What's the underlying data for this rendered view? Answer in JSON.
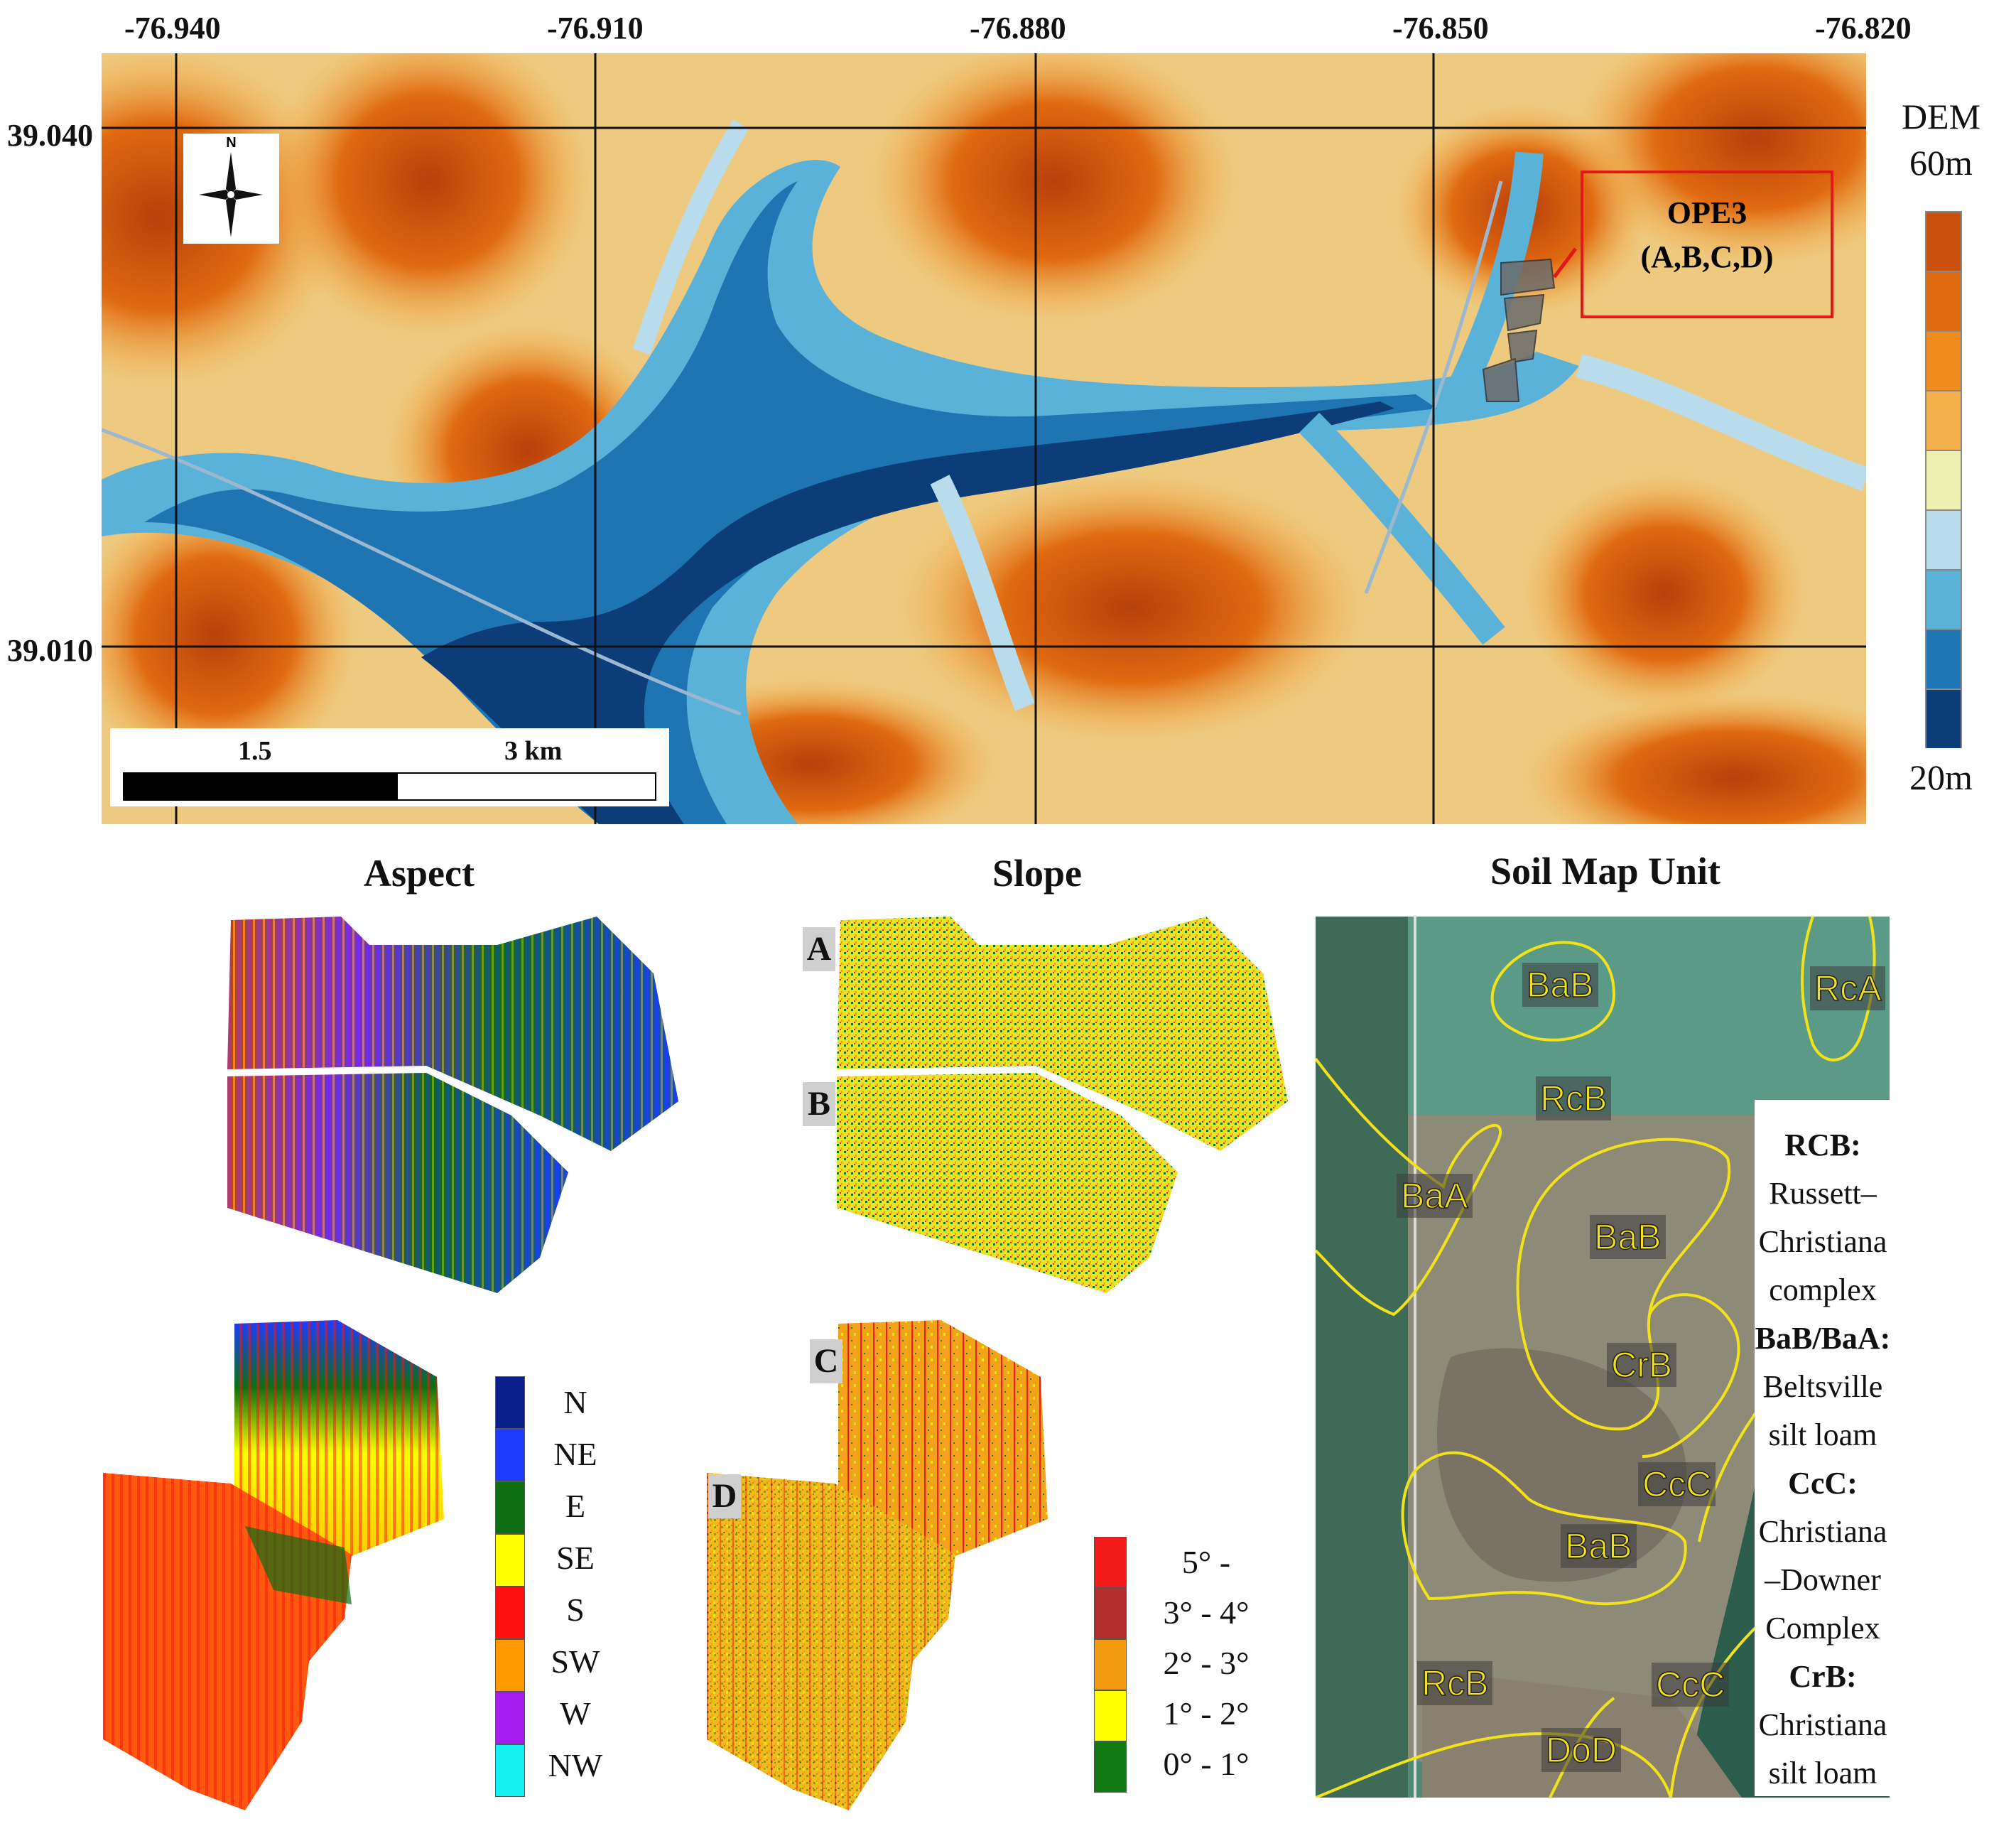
{
  "dem_map": {
    "lon_ticks": [
      "-76.940",
      "-76.910",
      "-76.880",
      "-76.850",
      "-76.820"
    ],
    "lat_ticks": [
      "39.040",
      "39.010"
    ],
    "north_label": "N",
    "scale_bar": {
      "mid": "1.5",
      "end": "3 km"
    },
    "study_site": {
      "title": "OPE3",
      "fields": "(A,B,C,D)"
    },
    "legend": {
      "title": "DEM",
      "max": "60m",
      "min": "20m",
      "colors": [
        "#c9500f",
        "#e06a10",
        "#f08c1c",
        "#f4b04a",
        "#eef0b0",
        "#b9dcec",
        "#5ab2d8",
        "#1f74b2",
        "#0d3d78"
      ]
    },
    "icons": [
      "north-arrow-icon"
    ]
  },
  "aspect": {
    "title": "Aspect",
    "legend": [
      {
        "label": "N",
        "color": "#0a1f8a"
      },
      {
        "label": "NE",
        "color": "#1b3cff"
      },
      {
        "label": "E",
        "color": "#0d6e12"
      },
      {
        "label": "SE",
        "color": "#ffff00"
      },
      {
        "label": "S",
        "color": "#ff1010"
      },
      {
        "label": "SW",
        "color": "#ff9a00"
      },
      {
        "label": "W",
        "color": "#a41cf0"
      },
      {
        "label": "NW",
        "color": "#12f0f0"
      }
    ]
  },
  "slope": {
    "title": "Slope",
    "field_labels": [
      "A",
      "B",
      "C",
      "D"
    ],
    "legend": [
      {
        "label": "5° -",
        "color": "#f21a1a"
      },
      {
        "label": "3° - 4°",
        "color": "#b52e2e"
      },
      {
        "label": "2° - 3°",
        "color": "#f49b12"
      },
      {
        "label": "1° - 2°",
        "color": "#ffff00"
      },
      {
        "label": "0° - 1°",
        "color": "#127a12"
      }
    ]
  },
  "soil": {
    "title": "Soil Map Unit",
    "map_labels": [
      "BaB",
      "RcA",
      "RcB",
      "BaA",
      "BaB",
      "CrB",
      "CcC",
      "BaB",
      "RcB",
      "CcC",
      "DoD"
    ],
    "descriptions": [
      {
        "code": "RCB:",
        "name_lines": [
          "Russett–",
          "Christiana",
          "complex"
        ]
      },
      {
        "code": "BaB/BaA:",
        "name_lines": [
          "Beltsville",
          "silt loam"
        ]
      },
      {
        "code": "CcC:",
        "name_lines": [
          "Christiana",
          "–Downer",
          "Complex"
        ]
      },
      {
        "code": "CrB:",
        "name_lines": [
          "Christiana",
          "silt loam"
        ]
      }
    ]
  }
}
